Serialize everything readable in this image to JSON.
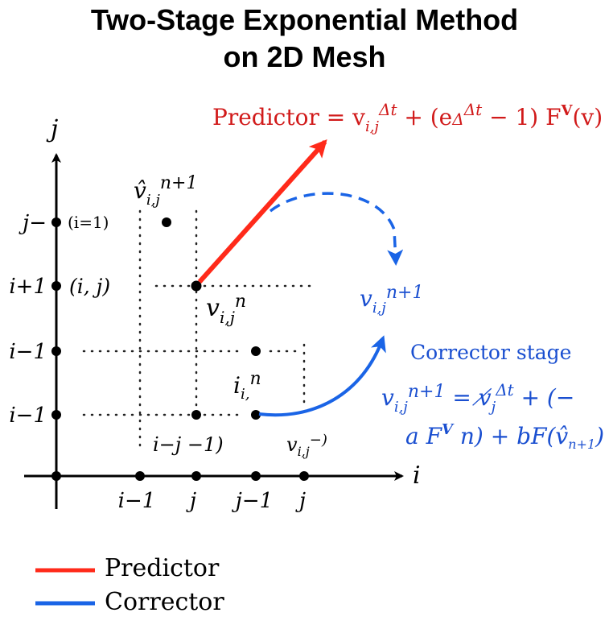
{
  "title": {
    "line1": "Two-Stage Exponential Method",
    "line2": "on 2D Mesh"
  },
  "axes": {
    "x_label": "i",
    "y_label": "j"
  },
  "y_ticks": [
    "j−",
    "i+1",
    "i−1",
    "i−1"
  ],
  "x_ticks": [
    "i−1",
    "j",
    "j−1",
    "j"
  ],
  "node_labels": {
    "paren_i1": "(i=1)",
    "paren_ij": "(i, j)",
    "v_hat": "v̂",
    "v_hat_sub": "i,j",
    "v_hat_sup": "n+1",
    "v_ij": "v",
    "v_ij_sub": "i,j",
    "v_ij_sup": "n",
    "i_in": "i",
    "i_in_sub": "i,",
    "i_in_sup": "n",
    "bottom_left": "i−j −1)",
    "bottom_right": "v",
    "bottom_right_sub": "i,j",
    "bottom_right_sup": "−)"
  },
  "predictor": {
    "formula_lhs": "Predictor = v",
    "formula_sub": "i,j",
    "formula_sup": "Δt",
    "formula_rhs_1": " + (e",
    "formula_rhs_sub": "Δ",
    "formula_rhs_sup": "Δt",
    "formula_rhs_2": " − 1) F",
    "formula_rhs_sup2": "V",
    "formula_rhs_3": "(v)"
  },
  "corrector": {
    "target_v": "v",
    "target_sub": "i,j",
    "target_sup": "n+1",
    "stage_label": "Corrector stage",
    "eq1_v": "v",
    "eq1_sub": "i,j",
    "eq1_sup": "n+1",
    "eq1_mid": " = v̸",
    "eq1_sub2": "j",
    "eq1_sup2": "Δt",
    "eq1_tail": " + (−",
    "eq2_head": "a F",
    "eq2_sup": "V",
    "eq2_mid": " n) + bF(",
    "eq2_vhat": "v̂",
    "eq2_sub": "n+1",
    "eq2_tail": ")"
  },
  "legend": [
    {
      "label": "Predictor",
      "color": "#ff2a1a"
    },
    {
      "label": "Corrector",
      "color": "#1a64e6"
    }
  ],
  "colors": {
    "predictor": "#ff2a1a",
    "corrector": "#1a64e6",
    "formula_red": "#d11a1a",
    "formula_blue": "#1a4fd0"
  }
}
